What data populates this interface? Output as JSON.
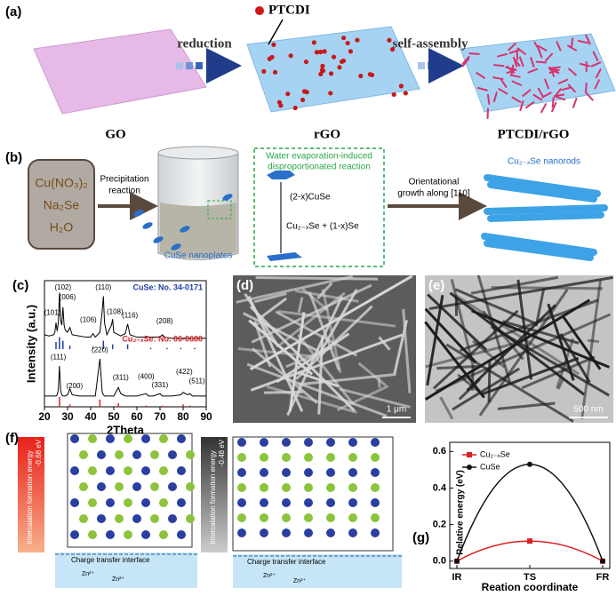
{
  "panel_labels": [
    "(a)",
    "(b)",
    "(c)",
    "(d)",
    "(e)",
    "(f)",
    "(g)"
  ],
  "panel_a": {
    "ptcdi": "PTCDI",
    "reduction": "reduction",
    "self_assembly": "self-assembly",
    "labels": [
      "GO",
      "rGO",
      "PTCDI/rGO"
    ]
  },
  "panel_b": {
    "reagents": [
      "Cu(NO₃)₂",
      "Na₂Se",
      "H₂O"
    ],
    "step1": [
      "Precipitation",
      "reaction"
    ],
    "beaker": "CuSe nanoplates",
    "box_title": [
      "Water evaporation-induced",
      "disproportionated reaction"
    ],
    "reactant": "(2-x)CuSe",
    "products": "Cu₂₋ₓSe + (1-x)Se",
    "step2": [
      "Orientational",
      "growth along [110]"
    ],
    "product": "Cu₂₋ₓSe nanorods"
  },
  "panel_d": {
    "scale": "1 μm"
  },
  "panel_e": {
    "scale": "500 nm"
  },
  "panel_f": {
    "energy_title": "Intercalation formation energy",
    "energies": [
      "-0.68 eV",
      "-0.48 eV"
    ],
    "interface": "Charge transfer interface",
    "ion": "Zn²⁺"
  },
  "chart_data": [
    {
      "type": "xrd",
      "xlabel": "2Theta",
      "ylabel": "Intensity (a.u.)",
      "xlim": [
        20,
        90
      ],
      "xticks": [
        20,
        30,
        40,
        50,
        60,
        70,
        80,
        90
      ],
      "ylim": [
        0,
        105
      ],
      "x": [
        20,
        22,
        24,
        24.5,
        25,
        25.5,
        26,
        26.5,
        27,
        27.5,
        28,
        28.5,
        29,
        30,
        31,
        32,
        35,
        38,
        40,
        41,
        42,
        44,
        45,
        45.5,
        46,
        47,
        49,
        49.5,
        50,
        52,
        53,
        55,
        56,
        57,
        60,
        64,
        65,
        67,
        70,
        71,
        72,
        75,
        79,
        80,
        82,
        83,
        84,
        86,
        90
      ],
      "series": [
        {
          "name": "CuSe: No. 34-0171",
          "color": "#1f3fa6",
          "values": [
            60,
            59,
            60,
            62,
            70,
            63,
            70,
            95,
            72,
            68,
            83,
            68,
            64,
            62,
            66,
            60,
            59,
            58,
            58,
            61,
            58,
            62,
            80,
            92,
            70,
            60,
            68,
            73,
            62,
            60,
            59,
            61,
            69,
            60,
            58,
            58,
            58,
            58,
            58,
            60,
            58,
            57,
            57,
            57,
            57,
            57,
            57,
            57,
            57
          ]
        },
        {
          "name": "Cu₂₋ₓSe: No. 06-0680",
          "color": "#d42020",
          "values": [
            9,
            9,
            9,
            9,
            9,
            10,
            14,
            34,
            14,
            10,
            9,
            9,
            9,
            10,
            15,
            10,
            9,
            9,
            9,
            9,
            9,
            40,
            12,
            10,
            9,
            9,
            9,
            9,
            9,
            16,
            11,
            9,
            9,
            9,
            9,
            11,
            9,
            9,
            11,
            9,
            9,
            9,
            10,
            12,
            10,
            11,
            9,
            9,
            9
          ]
        }
      ],
      "references": [
        {
          "color": "#1f3fa6",
          "offset": 48,
          "x": [
            25,
            26.5,
            28,
            31,
            41,
            45.5,
            49.5,
            56,
            66,
            73,
            79,
            85
          ],
          "values": [
            6,
            10,
            7,
            3,
            2,
            7,
            4,
            4,
            1,
            1,
            1,
            1
          ]
        },
        {
          "color": "#d42020",
          "offset": 0,
          "x": [
            26.5,
            31,
            44,
            52,
            64,
            71,
            80,
            83
          ],
          "values": [
            8,
            2,
            6,
            3,
            1,
            1,
            2,
            1
          ]
        }
      ],
      "annotations": [
        {
          "label": "(101)",
          "x": 23.5,
          "y": 78
        },
        {
          "label": "(102)",
          "x": 28,
          "y": 99
        },
        {
          "label": "(006)",
          "x": 30,
          "y": 91
        },
        {
          "label": "(110)",
          "x": 45.5,
          "y": 99
        },
        {
          "label": "(106)",
          "x": 39,
          "y": 72
        },
        {
          "label": "(108)",
          "x": 50.5,
          "y": 79
        },
        {
          "label": "(116)",
          "x": 57,
          "y": 76
        },
        {
          "label": "(208)",
          "x": 72,
          "y": 71
        },
        {
          "label": "(111)",
          "x": 26,
          "y": 41
        },
        {
          "label": "(200)",
          "x": 33,
          "y": 17
        },
        {
          "label": "(220)",
          "x": 44,
          "y": 47
        },
        {
          "label": "(311)",
          "x": 53,
          "y": 24
        },
        {
          "label": "(400)",
          "x": 64,
          "y": 25
        },
        {
          "label": "(331)",
          "x": 70,
          "y": 18
        },
        {
          "label": "(422)",
          "x": 80.5,
          "y": 29
        },
        {
          "label": "(511)",
          "x": 86,
          "y": 21
        }
      ]
    },
    {
      "type": "line",
      "xlabel": "Reation coordinate",
      "ylabel": "Relative energy (eV)",
      "categories": [
        "IR",
        "TS",
        "FR"
      ],
      "ylim": [
        -0.04,
        0.65
      ],
      "yticks": [
        {
          "value": 0,
          "label": "0.0"
        },
        0.2,
        0.4,
        0.6
      ],
      "series": [
        {
          "name": "Cu₂₋ₓSe",
          "color": "#e02020",
          "marker": "square",
          "values": [
            0,
            0.11,
            0
          ]
        },
        {
          "name": "CuSe",
          "color": "#111111",
          "marker": "circle",
          "values": [
            0,
            0.53,
            0
          ]
        }
      ]
    }
  ]
}
